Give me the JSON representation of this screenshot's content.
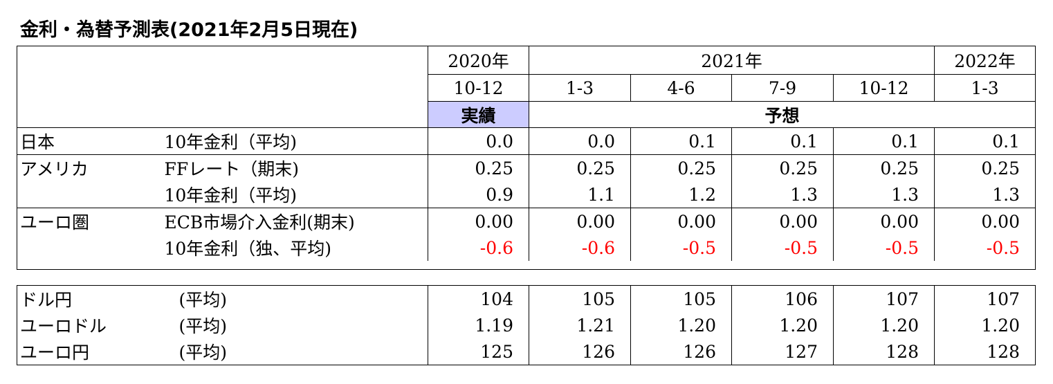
{
  "title": "金利・為替予測表(2021年2月5日現在)",
  "header": {
    "years": [
      "2020年",
      "2021年",
      "2022年"
    ],
    "quarters": [
      "10-12",
      "1-3",
      "4-6",
      "7-9",
      "10-12",
      "1-3"
    ],
    "actual_label": "実績",
    "forecast_label": "予想"
  },
  "rates": [
    {
      "region": "日本",
      "item": "10年金利（平均)",
      "values": [
        "0.0",
        "0.0",
        "0.1",
        "0.1",
        "0.1",
        "0.1"
      ],
      "negative": false
    },
    {
      "region": "アメリカ",
      "item": "FFレート（期末)",
      "values": [
        "0.25",
        "0.25",
        "0.25",
        "0.25",
        "0.25",
        "0.25"
      ],
      "negative": false
    },
    {
      "region": "",
      "item": "10年金利（平均)",
      "values": [
        "0.9",
        "1.1",
        "1.2",
        "1.3",
        "1.3",
        "1.3"
      ],
      "negative": false
    },
    {
      "region": "ユーロ圏",
      "item": "ECB市場介入金利(期末)",
      "values": [
        "0.00",
        "0.00",
        "0.00",
        "0.00",
        "0.00",
        "0.00"
      ],
      "negative": false
    },
    {
      "region": "",
      "item": "10年金利（独、平均)",
      "values": [
        "-0.6",
        "-0.6",
        "-0.5",
        "-0.5",
        "-0.5",
        "-0.5"
      ],
      "negative": true
    }
  ],
  "fx": [
    {
      "pair": "ドル円",
      "item": "(平均)",
      "values": [
        "104",
        "105",
        "105",
        "106",
        "107",
        "107"
      ]
    },
    {
      "pair": "ユーロドル",
      "item": "(平均)",
      "values": [
        "1.19",
        "1.21",
        "1.20",
        "1.20",
        "1.20",
        "1.20"
      ]
    },
    {
      "pair": "ユーロ円",
      "item": "(平均)",
      "values": [
        "125",
        "126",
        "126",
        "127",
        "128",
        "128"
      ]
    }
  ],
  "colors": {
    "negative": "#ff0000",
    "actual_bg": "#ccccff"
  }
}
